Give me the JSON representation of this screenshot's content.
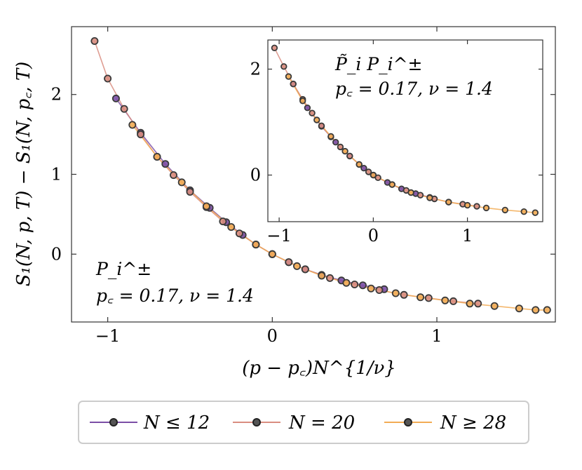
{
  "chart_data": [
    {
      "type": "line",
      "panel": "main",
      "ylabel": "S₁(N, p, T) − S₁(N, p꜀, T)",
      "xlabel": "(p − p꜀)N^{1/ν}",
      "xlim": [
        -1.22,
        1.72
      ],
      "ylim": [
        -0.85,
        2.85
      ],
      "xticks": [
        -1,
        0,
        1
      ],
      "yticks": [
        0,
        1,
        2
      ],
      "tick_labels_x": [
        "−1",
        "0",
        "1"
      ],
      "tick_labels_y": [
        "0",
        "1",
        "2"
      ],
      "annotation": {
        "line1": "P_i^±",
        "line2": "p꜀ = 0.17,  ν = 1.4"
      },
      "grid": false,
      "series": [
        {
          "name": "N ≤ 12",
          "color": "#7b4fa6",
          "x": [
            -0.95,
            -0.8,
            -0.65,
            -0.5,
            -0.38,
            -0.28,
            -0.18,
            -0.1,
            0.0,
            0.1,
            0.2,
            0.3,
            0.42,
            0.55,
            0.68
          ],
          "y": [
            1.95,
            1.52,
            1.13,
            0.8,
            0.58,
            0.4,
            0.24,
            0.12,
            0.0,
            -0.1,
            -0.19,
            -0.26,
            -0.33,
            -0.39,
            -0.44
          ]
        },
        {
          "name": "N = 20",
          "color": "#d98d80",
          "x": [
            -1.08,
            -1.0,
            -0.9,
            -0.8,
            -0.7,
            -0.6,
            -0.5,
            -0.4,
            -0.3,
            -0.2,
            -0.1,
            0.0,
            0.1,
            0.2,
            0.35,
            0.5,
            0.65,
            0.8,
            0.95,
            1.1,
            1.25
          ],
          "y": [
            2.67,
            2.2,
            1.82,
            1.5,
            1.22,
            0.99,
            0.78,
            0.59,
            0.41,
            0.26,
            0.12,
            0.0,
            -0.1,
            -0.19,
            -0.3,
            -0.38,
            -0.45,
            -0.51,
            -0.55,
            -0.59,
            -0.62
          ]
        },
        {
          "name": "N ≥ 28",
          "color": "#f2ac55",
          "x": [
            -0.85,
            -0.7,
            -0.55,
            -0.4,
            -0.25,
            -0.1,
            0.0,
            0.15,
            0.3,
            0.45,
            0.6,
            0.75,
            0.9,
            1.05,
            1.2,
            1.35,
            1.5,
            1.6,
            1.67
          ],
          "y": [
            1.62,
            1.22,
            0.9,
            0.6,
            0.34,
            0.12,
            0.0,
            -0.15,
            -0.27,
            -0.36,
            -0.43,
            -0.49,
            -0.54,
            -0.58,
            -0.62,
            -0.65,
            -0.68,
            -0.7,
            -0.7
          ]
        }
      ]
    },
    {
      "type": "line",
      "panel": "inset",
      "xlim": [
        -1.12,
        1.8
      ],
      "ylim": [
        -0.88,
        2.55
      ],
      "xticks": [
        -1,
        0,
        1
      ],
      "yticks": [
        0,
        2
      ],
      "tick_labels_x": [
        "−1",
        "0",
        "1"
      ],
      "tick_labels_y": [
        "0",
        "2"
      ],
      "annotation": {
        "line1": "P̃_i P_i^±",
        "line2": "p꜀ = 0.17,  ν = 1.4"
      },
      "grid": false,
      "series": [
        {
          "name": "N ≤ 12",
          "color": "#7b4fa6",
          "x": [
            -0.85,
            -0.7,
            -0.55,
            -0.4,
            -0.25,
            -0.1,
            0.0,
            0.15,
            0.3,
            0.45,
            0.6
          ],
          "y": [
            1.72,
            1.27,
            0.92,
            0.62,
            0.36,
            0.13,
            0.0,
            -0.14,
            -0.26,
            -0.35,
            -0.42
          ]
        },
        {
          "name": "N = 20",
          "color": "#d98d80",
          "x": [
            -1.05,
            -0.95,
            -0.85,
            -0.75,
            -0.65,
            -0.55,
            -0.45,
            -0.35,
            -0.25,
            -0.15,
            -0.05,
            0.05,
            0.2,
            0.35,
            0.5,
            0.65,
            0.8,
            0.95,
            1.1
          ],
          "y": [
            2.4,
            2.05,
            1.72,
            1.43,
            1.17,
            0.93,
            0.72,
            0.53,
            0.36,
            0.2,
            0.06,
            -0.05,
            -0.18,
            -0.29,
            -0.38,
            -0.45,
            -0.51,
            -0.55,
            -0.59
          ]
        },
        {
          "name": "N ≥ 28",
          "color": "#f2ac55",
          "x": [
            -0.9,
            -0.75,
            -0.6,
            -0.45,
            -0.3,
            -0.15,
            0.0,
            0.2,
            0.4,
            0.6,
            0.8,
            1.0,
            1.2,
            1.4,
            1.6,
            1.72
          ],
          "y": [
            1.86,
            1.4,
            1.04,
            0.73,
            0.45,
            0.2,
            0.0,
            -0.18,
            -0.33,
            -0.43,
            -0.51,
            -0.57,
            -0.62,
            -0.66,
            -0.69,
            -0.71
          ]
        }
      ]
    }
  ],
  "legend": {
    "placement": "bottom-center",
    "items": [
      {
        "label": "N ≤ 12",
        "color": "#7b4fa6"
      },
      {
        "label": "N = 20",
        "color": "#d98d80"
      },
      {
        "label": "N ≥ 28",
        "color": "#f2ac55"
      }
    ]
  }
}
